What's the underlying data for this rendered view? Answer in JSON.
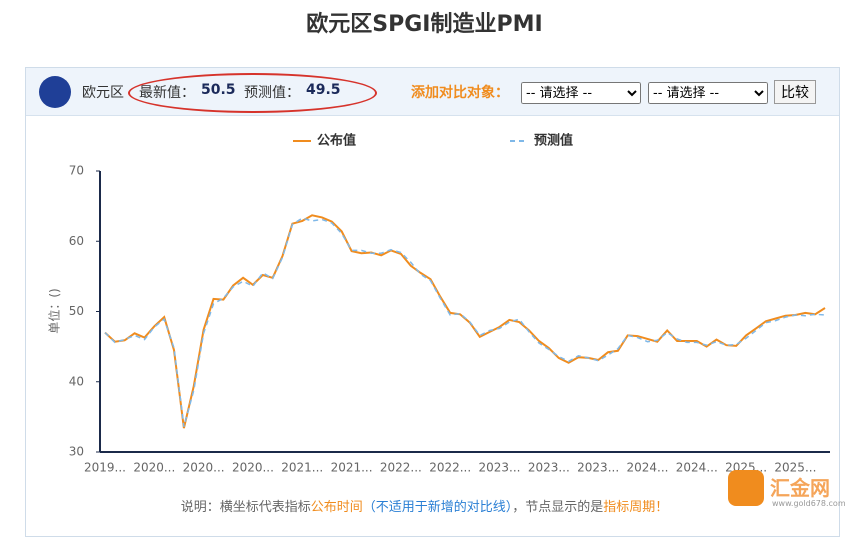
{
  "header": {
    "title": "欧元区SPGI制造业PMI"
  },
  "panel": {
    "region": "欧元区",
    "latest_label": "最新值：",
    "latest_value": 50.5,
    "forecast_label": "预测值：",
    "forecast_value": 49.5,
    "compare_label": "添加对比对象：",
    "select_1": "-- 请选择 --",
    "select_2": "-- 请选择 --",
    "button": "比较"
  },
  "chart_data": {
    "type": "line",
    "y_label": "单位：()",
    "categories": [
      "2019...",
      null,
      null,
      null,
      null,
      "2020...",
      null,
      null,
      null,
      null,
      "2020...",
      null,
      null,
      null,
      null,
      "2020...",
      null,
      null,
      null,
      null,
      "2021...",
      null,
      null,
      null,
      null,
      "2021...",
      null,
      null,
      null,
      null,
      "2022...",
      null,
      null,
      null,
      null,
      "2022...",
      null,
      null,
      null,
      null,
      "2023...",
      null,
      null,
      null,
      null,
      "2023...",
      null,
      null,
      null,
      null,
      "2023...",
      null,
      null,
      null,
      null,
      "2024...",
      null,
      null,
      null,
      null,
      "2024...",
      null,
      null,
      null,
      null,
      "2025...",
      null,
      null,
      null,
      null,
      "2025...",
      null,
      null,
      null
    ],
    "series": [
      {
        "name": "公布值",
        "color": "#f08c1e",
        "values": [
          47.0,
          45.7,
          45.9,
          46.9,
          46.3,
          47.9,
          49.2,
          44.5,
          33.4,
          39.4,
          47.4,
          51.8,
          51.7,
          53.7,
          54.8,
          53.8,
          55.2,
          54.8,
          57.9,
          62.5,
          62.9,
          63.7,
          63.4,
          62.8,
          61.4,
          58.6,
          58.3,
          58.4,
          58.0,
          58.7,
          58.2,
          56.5,
          55.5,
          54.6,
          52.1,
          49.8,
          49.6,
          48.4,
          46.4,
          47.1,
          47.8,
          48.8,
          48.5,
          47.3,
          45.8,
          44.8,
          43.4,
          42.7,
          43.5,
          43.4,
          43.1,
          44.2,
          44.4,
          46.6,
          46.5,
          46.1,
          45.7,
          47.3,
          45.8,
          45.8,
          45.8,
          45.0,
          46.0,
          45.2,
          45.1,
          46.6,
          47.6,
          48.6,
          49.0,
          49.4,
          49.5,
          49.8,
          49.6,
          50.5
        ]
      },
      {
        "name": "预测值",
        "color": "#7fb8e8",
        "values": [
          47.0,
          45.6,
          46.0,
          46.6,
          46.0,
          47.8,
          48.9,
          44.8,
          33.6,
          38.8,
          46.9,
          51.1,
          51.9,
          53.5,
          54.3,
          53.6,
          55.5,
          54.7,
          57.7,
          62.4,
          63.3,
          62.9,
          63.1,
          62.6,
          61.1,
          58.7,
          58.7,
          58.3,
          58.3,
          58.8,
          58.4,
          57.0,
          55.3,
          54.4,
          51.9,
          49.5,
          49.7,
          48.5,
          46.6,
          47.3,
          47.6,
          48.5,
          48.9,
          47.1,
          45.5,
          44.6,
          43.6,
          42.9,
          43.7,
          43.4,
          43.0,
          43.8,
          44.7,
          46.6,
          46.3,
          45.7,
          45.9,
          47.0,
          46.1,
          45.6,
          45.6,
          45.2,
          45.7,
          45.2,
          45.3,
          46.2,
          47.3,
          48.4,
          48.7,
          49.2,
          49.5,
          49.4,
          49.6,
          49.5
        ]
      }
    ],
    "ylim": [
      30,
      70
    ],
    "yticks": [
      30,
      40,
      50,
      60,
      70
    ],
    "grid": false
  },
  "footer": {
    "part_1": "说明：横坐标代表指标",
    "part_2": "公布时间",
    "part_3": "（不适用于新增的对比线）",
    "part_4": "，节点显示的是",
    "part_5": "指标周期",
    "part_6": "！"
  },
  "logo": {
    "name": "汇金网",
    "url": "www.gold678.com"
  }
}
